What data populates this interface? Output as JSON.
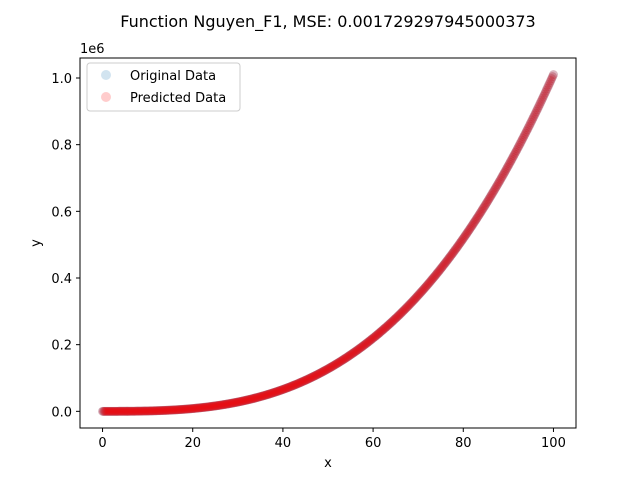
{
  "chart_data": {
    "type": "scatter",
    "title": "Function Nguyen_F1, MSE: 0.001729297945000373",
    "xlabel": "x",
    "ylabel": "y",
    "y_scale_label": "1e6",
    "xlim": [
      -5,
      105
    ],
    "ylim": [
      -50000,
      1060000
    ],
    "x_ticks": [
      0,
      20,
      40,
      60,
      80,
      100
    ],
    "x_tick_labels": [
      "0",
      "20",
      "40",
      "60",
      "80",
      "100"
    ],
    "y_ticks": [
      0,
      200000,
      400000,
      600000,
      800000,
      1000000
    ],
    "y_tick_labels": [
      "0.0",
      "0.2",
      "0.4",
      "0.6",
      "0.8",
      "1.0"
    ],
    "grid": false,
    "legend_position": "top-left",
    "function": "x^3 + x^2 + x",
    "x_range": [
      0,
      100
    ],
    "n_points": 501,
    "series": [
      {
        "name": "Original Data",
        "color": "#1f77b4",
        "alpha": 0.2
      },
      {
        "name": "Predicted Data",
        "color": "#ff0000",
        "alpha": 0.2
      }
    ]
  }
}
